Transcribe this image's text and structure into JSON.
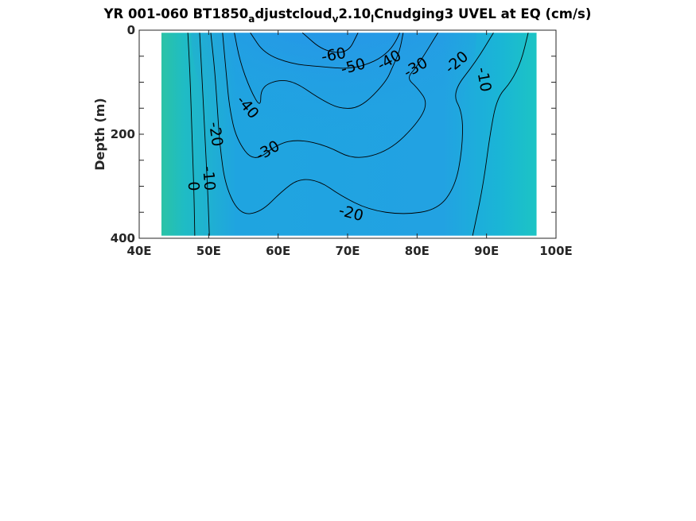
{
  "chart_data": {
    "type": "heatmap",
    "title": {
      "prefix": "YR 001-060 BT1850",
      "sub1": "a",
      "mid1": "djustcloud",
      "sub2": "v",
      "mid2": "2.10",
      "sub3": "l",
      "suffix": "Cnudging3 UVEL at EQ (cm/s)"
    },
    "xlabel": "",
    "ylabel": "Depth (m)",
    "xlim": [
      40,
      100
    ],
    "ylim": [
      0,
      400
    ],
    "y_reversed": true,
    "x_ticks": [
      40,
      50,
      60,
      70,
      80,
      90,
      100
    ],
    "x_tick_labels": [
      "40E",
      "50E",
      "60E",
      "70E",
      "80E",
      "90E",
      "100E"
    ],
    "y_ticks": [
      0,
      200,
      400
    ],
    "y_tick_labels": [
      "0",
      "200",
      "400"
    ],
    "data_extent": {
      "x": [
        43.2,
        97.2
      ],
      "y": [
        5,
        395
      ]
    },
    "colormap": [
      "#4169ff",
      "#2a8fef",
      "#1db0dc",
      "#1dc6c0",
      "#28c4a8"
    ],
    "color_range": [
      -65,
      5
    ],
    "grid": false,
    "contours": [
      {
        "level": 0,
        "points": [
          [
            47.0,
            5
          ],
          [
            47.3,
            80
          ],
          [
            47.5,
            160
          ],
          [
            47.7,
            240
          ],
          [
            47.9,
            320
          ],
          [
            48.0,
            395
          ]
        ],
        "labels": [
          {
            "text": "0",
            "x": 47.8,
            "y": 300,
            "rot": 87
          }
        ]
      },
      {
        "level": -10,
        "points": [
          [
            48.7,
            5
          ],
          [
            49.0,
            80
          ],
          [
            49.3,
            160
          ],
          [
            49.6,
            240
          ],
          [
            49.9,
            320
          ],
          [
            50.1,
            395
          ]
        ],
        "labels": [
          {
            "text": "-10",
            "x": 50.0,
            "y": 285,
            "rot": 85
          }
        ]
      },
      {
        "level": -10,
        "points": [
          [
            96.0,
            5
          ],
          [
            95.0,
            60
          ],
          [
            93.5,
            100
          ],
          [
            91.5,
            130
          ],
          [
            90.5,
            200
          ],
          [
            89.5,
            300
          ],
          [
            88.0,
            395
          ]
        ],
        "labels": [
          {
            "text": "-10",
            "x": 89.6,
            "y": 95,
            "rot": 80
          }
        ]
      },
      {
        "level": -20,
        "points": [
          [
            50.3,
            5
          ],
          [
            50.9,
            80
          ],
          [
            51.3,
            160
          ],
          [
            51.6,
            220
          ],
          [
            52.4,
            300
          ],
          [
            54.5,
            355
          ],
          [
            57.5,
            350
          ],
          [
            60.5,
            310
          ],
          [
            63.0,
            285
          ],
          [
            66.0,
            290
          ],
          [
            69.0,
            318
          ],
          [
            73.0,
            345
          ],
          [
            78.0,
            355
          ],
          [
            83.0,
            345
          ],
          [
            85.5,
            300
          ],
          [
            86.5,
            230
          ],
          [
            86.6,
            160
          ],
          [
            85.0,
            120
          ],
          [
            88.5,
            60
          ],
          [
            91.0,
            5
          ]
        ],
        "labels": [
          {
            "text": "-20",
            "x": 51.0,
            "y": 200,
            "rot": 82
          },
          {
            "text": "-20",
            "x": 70.5,
            "y": 352,
            "rot": 15
          },
          {
            "text": "-20",
            "x": 85.7,
            "y": 62,
            "rot": -40
          }
        ]
      },
      {
        "level": -30,
        "points": [
          [
            52.0,
            5
          ],
          [
            52.5,
            80
          ],
          [
            53.0,
            150
          ],
          [
            54.0,
            210
          ],
          [
            56.5,
            255
          ],
          [
            60.0,
            218
          ],
          [
            63.0,
            210
          ],
          [
            67.0,
            222
          ],
          [
            71.0,
            250
          ],
          [
            76.0,
            232
          ],
          [
            80.0,
            180
          ],
          [
            81.6,
            140
          ],
          [
            80.0,
            110
          ],
          [
            78.5,
            92
          ],
          [
            80.0,
            70
          ],
          [
            83.0,
            5
          ]
        ],
        "labels": [
          {
            "text": "-30",
            "x": 58.5,
            "y": 232,
            "rot": -30
          },
          {
            "text": "-30",
            "x": 79.8,
            "y": 72,
            "rot": -30
          }
        ]
      },
      {
        "level": -40,
        "points": [
          [
            53.7,
            5
          ],
          [
            54.5,
            60
          ],
          [
            56.0,
            115
          ],
          [
            57.5,
            150
          ],
          [
            57.5,
            110
          ],
          [
            60.0,
            95
          ],
          [
            62.5,
            100
          ],
          [
            66.0,
            132
          ],
          [
            69.0,
            152
          ],
          [
            72.0,
            148
          ],
          [
            75.5,
            100
          ],
          [
            76.5,
            70
          ],
          [
            77.5,
            40
          ],
          [
            78.0,
            5
          ]
        ],
        "labels": [
          {
            "text": "-40",
            "x": 55.6,
            "y": 148,
            "rot": 50
          },
          {
            "text": "-40",
            "x": 76.0,
            "y": 58,
            "rot": -30
          }
        ]
      },
      {
        "level": -50,
        "points": [
          [
            56.0,
            5
          ],
          [
            58.0,
            45
          ],
          [
            62.0,
            65
          ],
          [
            66.0,
            70
          ],
          [
            70.5,
            75
          ],
          [
            74.0,
            60
          ],
          [
            76.0,
            40
          ],
          [
            77.0,
            20
          ],
          [
            77.5,
            5
          ]
        ],
        "labels": [
          {
            "text": "-50",
            "x": 70.8,
            "y": 70,
            "rot": -15
          }
        ]
      },
      {
        "level": -60,
        "points": [
          [
            63.5,
            5
          ],
          [
            66.5,
            40
          ],
          [
            70.0,
            45
          ],
          [
            71.5,
            5
          ]
        ],
        "labels": [
          {
            "text": "-60",
            "x": 68.0,
            "y": 48,
            "rot": -10
          }
        ]
      }
    ]
  }
}
